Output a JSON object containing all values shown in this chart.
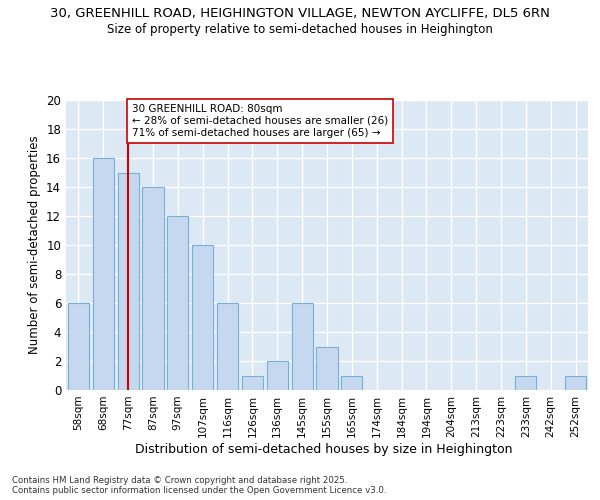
{
  "title_line1": "30, GREENHILL ROAD, HEIGHINGTON VILLAGE, NEWTON AYCLIFFE, DL5 6RN",
  "title_line2": "Size of property relative to semi-detached houses in Heighington",
  "xlabel": "Distribution of semi-detached houses by size in Heighington",
  "ylabel": "Number of semi-detached properties",
  "categories": [
    "58sqm",
    "68sqm",
    "77sqm",
    "87sqm",
    "97sqm",
    "107sqm",
    "116sqm",
    "126sqm",
    "136sqm",
    "145sqm",
    "155sqm",
    "165sqm",
    "174sqm",
    "184sqm",
    "194sqm",
    "204sqm",
    "213sqm",
    "223sqm",
    "233sqm",
    "242sqm",
    "252sqm"
  ],
  "values": [
    6,
    16,
    15,
    14,
    12,
    10,
    6,
    1,
    2,
    6,
    3,
    1,
    0,
    0,
    0,
    0,
    0,
    0,
    1,
    0,
    1
  ],
  "bar_color": "#c5d8f0",
  "bar_edge_color": "#7aafd4",
  "subject_bin_index": 2,
  "subject_label": "30 GREENHILL ROAD: 80sqm",
  "smaller_pct": 28,
  "smaller_count": 26,
  "larger_pct": 71,
  "larger_count": 65,
  "vline_color": "#cc0000",
  "annotation_box_edge": "#cc0000",
  "ylim": [
    0,
    20
  ],
  "yticks": [
    0,
    2,
    4,
    6,
    8,
    10,
    12,
    14,
    16,
    18,
    20
  ],
  "bg_color": "#dde8f5",
  "grid_color": "#ffffff",
  "fig_bg": "#ffffff",
  "footer_line1": "Contains HM Land Registry data © Crown copyright and database right 2025.",
  "footer_line2": "Contains public sector information licensed under the Open Government Licence v3.0."
}
